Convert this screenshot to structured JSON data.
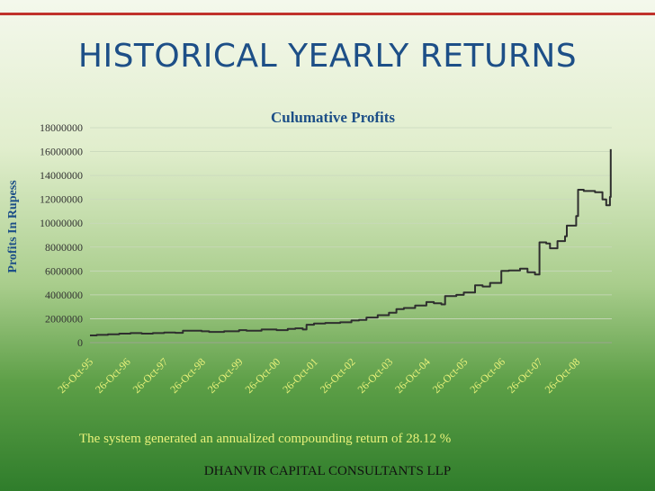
{
  "slide": {
    "title": "HISTORICAL YEARLY RETURNS",
    "note": "The system generated an annualized compounding return of 28.12 %",
    "company": "DHANVIR CAPITAL CONSULTANTS LLP",
    "accent_color": "#c0322c",
    "title_color": "#1d4f87",
    "line_color": "#2e2e2e"
  },
  "chart_data": {
    "type": "line",
    "title": "Culumative Profits",
    "ylabel": "Profits In Rupess",
    "xlabel": "",
    "ylim": [
      0,
      18000000
    ],
    "yticks": [
      0,
      2000000,
      4000000,
      6000000,
      8000000,
      10000000,
      12000000,
      14000000,
      16000000,
      18000000
    ],
    "ytick_labels": [
      "0",
      "2000000",
      "4000000",
      "6000000",
      "8000000",
      "10000000",
      "12000000",
      "14000000",
      "16000000",
      "18000000"
    ],
    "xlim": [
      1995.82,
      2009.75
    ],
    "xticks": [
      1995.82,
      1996.82,
      1997.82,
      1998.82,
      1999.82,
      2000.82,
      2001.82,
      2002.82,
      2003.82,
      2004.82,
      2005.82,
      2006.82,
      2007.82,
      2008.82
    ],
    "xtick_labels": [
      "26-Oct-95",
      "26-Oct-96",
      "26-Oct-97",
      "26-Oct-98",
      "26-Oct-99",
      "26-Oct-00",
      "26-Oct-01",
      "26-Oct-02",
      "26-Oct-03",
      "26-Oct-04",
      "26-Oct-05",
      "26-Oct-06",
      "26-Oct-07",
      "26-Oct-08"
    ],
    "grid": "horizontal",
    "legend": "none",
    "series": [
      {
        "x": [
          1995.82,
          1996.0,
          1996.3,
          1996.6,
          1996.9,
          1997.2,
          1997.5,
          1997.8,
          1998.1,
          1998.3,
          1998.8,
          1999.0,
          1999.4,
          1999.8,
          2000.0,
          2000.4,
          2000.8,
          2001.1,
          2001.3,
          2001.5,
          2001.6,
          2001.8,
          2002.1,
          2002.5,
          2002.8,
          2003.0,
          2003.2,
          2003.5,
          2003.8,
          2004.0,
          2004.2,
          2004.5,
          2004.8,
          2005.0,
          2005.2,
          2005.3,
          2005.6,
          2005.8,
          2006.1,
          2006.3,
          2006.5,
          2006.8,
          2007.0,
          2007.3,
          2007.5,
          2007.7,
          2007.82,
          2008.0,
          2008.1,
          2008.3,
          2008.5,
          2008.55,
          2008.8,
          2008.85,
          2009.0,
          2009.3,
          2009.5,
          2009.6,
          2009.7,
          2009.72
        ],
        "y": [
          600000,
          650000,
          700000,
          750000,
          800000,
          750000,
          800000,
          850000,
          820000,
          1000000,
          950000,
          900000,
          950000,
          1050000,
          1000000,
          1100000,
          1050000,
          1150000,
          1200000,
          1100000,
          1500000,
          1600000,
          1650000,
          1700000,
          1850000,
          1900000,
          2100000,
          2300000,
          2500000,
          2800000,
          2900000,
          3100000,
          3400000,
          3300000,
          3200000,
          3900000,
          4000000,
          4200000,
          4800000,
          4700000,
          5000000,
          6000000,
          6050000,
          6200000,
          5900000,
          5700000,
          8400000,
          8300000,
          7900000,
          8500000,
          8900000,
          9800000,
          10600000,
          12800000,
          12700000,
          12600000,
          12000000,
          11500000,
          12200000,
          16200000
        ]
      }
    ]
  }
}
